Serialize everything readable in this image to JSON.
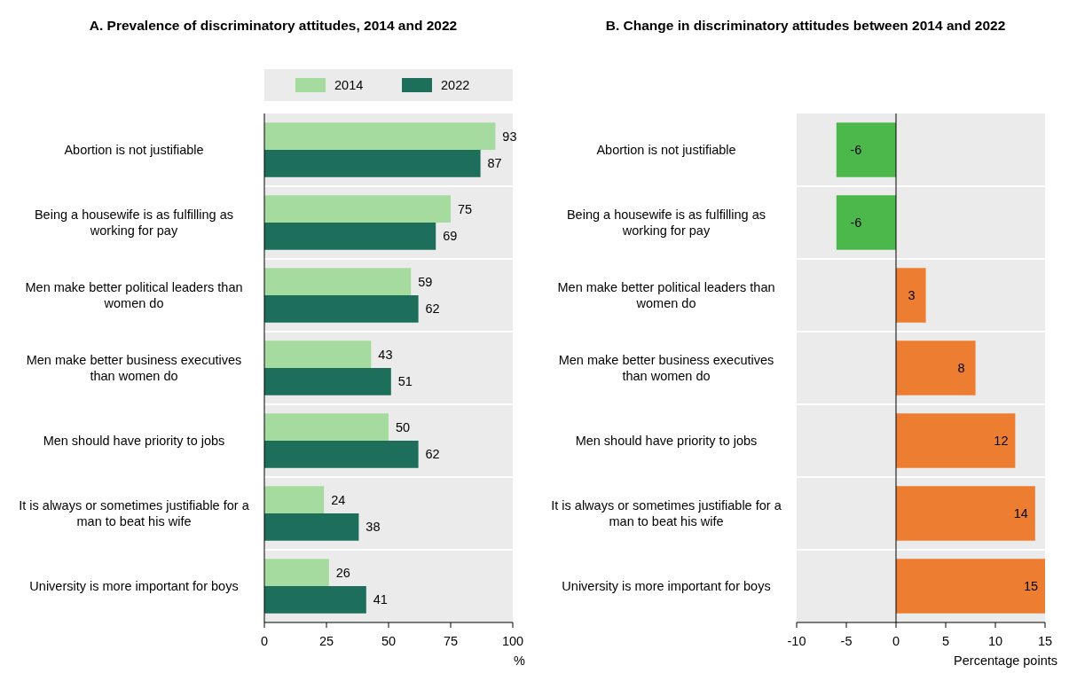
{
  "chart_data": [
    {
      "type": "bar",
      "orientation": "horizontal",
      "title": "A. Prevalence of discriminatory attitudes, 2014 and 2022",
      "xlabel": "%",
      "categories": [
        "Abortion is not justifiable",
        "Being a housewife is as fulfilling as working for pay",
        "Men make better political leaders than women do",
        "Men make better business executives than women do",
        "Men should have priority to jobs",
        "It is always or sometimes justifiable for a man to beat his wife",
        "University is more important for boys"
      ],
      "series": [
        {
          "name": "2014",
          "color": "#a6dba0",
          "values": [
            93,
            75,
            59,
            43,
            50,
            24,
            26
          ]
        },
        {
          "name": "2022",
          "color": "#1d6e5a",
          "values": [
            87,
            69,
            62,
            51,
            62,
            38,
            41
          ]
        }
      ],
      "xlim": [
        0,
        100
      ],
      "xticks": [
        0,
        25,
        50,
        75,
        100
      ],
      "data_labels": true,
      "legend": "top",
      "grid": false
    },
    {
      "type": "bar",
      "orientation": "horizontal",
      "title": "B. Change in discriminatory attitudes between 2014 and 2022",
      "xlabel": "Percentage points",
      "categories": [
        "Abortion is not justifiable",
        "Being a housewife is as fulfilling as working for pay",
        "Men make better political leaders than women do",
        "Men make better business executives than women do",
        "Men should have priority to jobs",
        "It is always or sometimes justifiable for a man to beat his wife",
        "University is more important for boys"
      ],
      "values": [
        -6,
        -6,
        3,
        8,
        12,
        14,
        15
      ],
      "colors": [
        "#4cb84c",
        "#4cb84c",
        "#ed7d31",
        "#ed7d31",
        "#ed7d31",
        "#ed7d31",
        "#ed7d31"
      ],
      "xlim": [
        -10,
        15
      ],
      "xticks": [
        -10,
        -5,
        0,
        5,
        10,
        15
      ],
      "data_labels": true,
      "grid": false
    }
  ]
}
